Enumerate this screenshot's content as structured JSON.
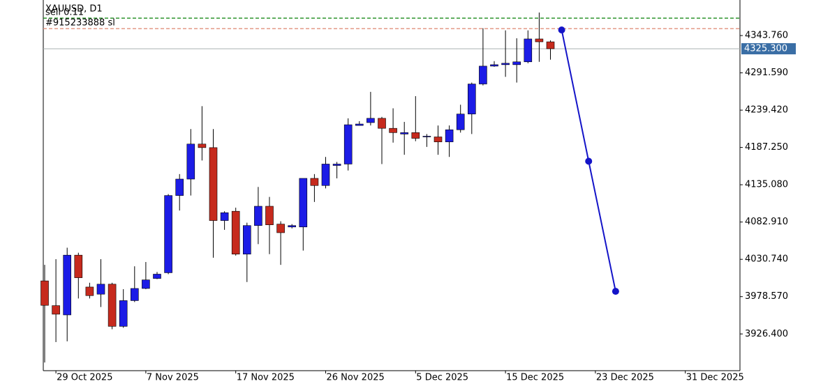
{
  "chart_data": {
    "type": "candlestick",
    "title": "XAUUSD, D1",
    "annotations": [
      "sell 0.11",
      "#915233888 sl"
    ],
    "categories": [
      null,
      "29 Oct 2025",
      null,
      null,
      null,
      null,
      null,
      null,
      null,
      "7 Nov 2025",
      null,
      null,
      null,
      null,
      null,
      null,
      null,
      "17 Nov 2025",
      null,
      null,
      null,
      null,
      null,
      null,
      null,
      "26 Nov 2025",
      null,
      null,
      null,
      null,
      null,
      null,
      null,
      "5 Dec 2025",
      null,
      null,
      null,
      null,
      null,
      null,
      null,
      "15 Dec 2025",
      null,
      null,
      null,
      null,
      null,
      null,
      null,
      "23 Dec 2025",
      null,
      null,
      null,
      null,
      null,
      null,
      null,
      "31 Dec 2025",
      null,
      null,
      null,
      null
    ],
    "open": [
      4000.6,
      3966,
      3953,
      4036.6,
      3992,
      3982,
      3996,
      3937,
      3973,
      3990,
      4004,
      4012,
      4120,
      4143,
      4192,
      4187,
      4085,
      4098,
      4038,
      4078,
      4105,
      4080,
      4076,
      4076,
      4144,
      4134,
      4162,
      4164,
      4218,
      4222,
      4228,
      4214,
      4206,
      4208,
      4202,
      4202,
      4195,
      4212,
      4234,
      4276,
      4301,
      4303,
      4303,
      4307,
      4339,
      4335,
      null,
      null,
      null,
      null,
      null,
      null,
      null,
      null,
      null,
      null,
      null,
      null,
      null,
      null,
      null,
      null
    ],
    "high": [
      4023,
      4031,
      4047,
      4040,
      3998,
      4031,
      3998,
      3989,
      4021,
      4027,
      4013,
      4122,
      4150,
      4213,
      4245,
      4213,
      4098,
      4103,
      4082,
      4132,
      4118,
      4084,
      4080,
      4144,
      4150,
      4174,
      4167,
      4228,
      4224,
      4265,
      4230,
      4242,
      4223,
      4259,
      4206,
      4218,
      4218,
      4247,
      4278,
      4354,
      4308,
      4351,
      4340,
      4351,
      4376,
      4337,
      null,
      null,
      null,
      null,
      null,
      null,
      null,
      null,
      null,
      null,
      null,
      null,
      null,
      null,
      null,
      null
    ],
    "low": [
      3886.5,
      3915,
      3916,
      3976,
      3976,
      3964,
      3933,
      3935,
      3971,
      3989,
      4003,
      4010,
      4099,
      4120,
      4169,
      4033,
      4072,
      4036,
      3999,
      4052,
      4038,
      4023,
      4074,
      4043,
      4111,
      4130,
      4144,
      4155,
      4218,
      4218,
      4164,
      4194,
      4177,
      4196,
      4188,
      4177,
      4174,
      4208,
      4206,
      4274,
      4300,
      4286,
      4278,
      4305,
      4307,
      4310,
      null,
      null,
      null,
      null,
      null,
      null,
      null,
      null,
      null,
      null,
      null,
      null,
      null,
      null,
      null,
      null
    ],
    "close": [
      3966.4,
      3954,
      4036.6,
      4005,
      3980,
      3996,
      3937,
      3973,
      3990,
      4002,
      4010,
      4120,
      4143,
      4192,
      4187,
      4085,
      4096,
      4038,
      4078,
      4105,
      4079,
      4068,
      4078,
      4144,
      4134,
      4164,
      4164,
      4219,
      4220,
      4228,
      4214,
      4208,
      4208,
      4200,
      4203,
      4195,
      4212,
      4234,
      4276,
      4301,
      4303,
      4305,
      4307,
      4339,
      4335,
      4325.3,
      null,
      null,
      null,
      null,
      null,
      null,
      null,
      null,
      null,
      null,
      null,
      null,
      null,
      null,
      null,
      null
    ],
    "up_color": "#1c1ce6",
    "down_color": "#c62a1d",
    "ylim": [
      3875,
      4393.5
    ],
    "yticks": [
      {
        "value": 3926.4,
        "label": "3926.400"
      },
      {
        "value": 3978.57,
        "label": "3978.570"
      },
      {
        "value": 4030.74,
        "label": "4030.740"
      },
      {
        "value": 4082.91,
        "label": "4082.910"
      },
      {
        "value": 4135.08,
        "label": "4135.080"
      },
      {
        "value": 4187.25,
        "label": "4187.250"
      },
      {
        "value": 4239.42,
        "label": "4239.420"
      },
      {
        "value": 4291.59,
        "label": "4291.590"
      },
      {
        "value": 4343.76,
        "label": "4343.760"
      }
    ],
    "levels": [
      {
        "value": 4368.1,
        "color": "#1a8a1a",
        "style": "dashed"
      },
      {
        "value": 4353.5,
        "color": "#e0907c",
        "style": "dashed"
      }
    ],
    "price_line": {
      "value": 4325.3,
      "label": "4325.300",
      "color": "#3a6ea5"
    },
    "projection": {
      "x": [
        46,
        48.4,
        50.8
      ],
      "values": [
        4351.6,
        4168,
        3986
      ],
      "color": "#1414c8"
    }
  }
}
